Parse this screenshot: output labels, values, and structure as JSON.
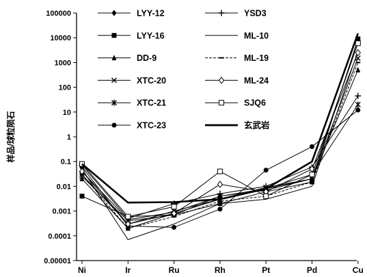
{
  "chart_data": {
    "type": "line",
    "title": "",
    "xlabel": "",
    "ylabel": "样品/球粒陨石",
    "y_scale": "log",
    "ylim": [
      1e-05,
      100000
    ],
    "y_tick_labels": [
      "0.00001",
      "0.0001",
      "0.001",
      "0.01",
      "0.1",
      "1",
      "10",
      "100",
      "1000",
      "10000",
      "100000"
    ],
    "categories": [
      "Ni",
      "Ir",
      "Ru",
      "Rh",
      "Pt",
      "Pd",
      "Cu"
    ],
    "grid": false,
    "legend_position": "top",
    "series": [
      {
        "name": "LYY-12",
        "marker": "diamond",
        "values": [
          0.04,
          0.00045,
          0.0009,
          0.004,
          0.007,
          0.02,
          8000
        ]
      },
      {
        "name": "LYY-16",
        "marker": "square",
        "values": [
          0.004,
          0.0006,
          0.0007,
          0.002,
          0.006,
          0.015,
          9000
        ]
      },
      {
        "name": "DD-9",
        "marker": "triangle",
        "values": [
          0.02,
          0.0002,
          0.0008,
          0.003,
          0.008,
          0.02,
          500
        ]
      },
      {
        "name": "XTC-20",
        "marker": "x",
        "values": [
          0.03,
          0.0003,
          0.001,
          0.003,
          0.009,
          0.02,
          1500
        ]
      },
      {
        "name": "XTC-21",
        "marker": "star",
        "values": [
          0.025,
          0.0004,
          0.0007,
          0.004,
          0.008,
          0.03,
          20
        ]
      },
      {
        "name": "XTC-23",
        "marker": "circle",
        "values": [
          0.06,
          0.00025,
          0.00022,
          0.0012,
          0.045,
          0.4,
          12
        ]
      },
      {
        "name": "YSD3",
        "marker": "plus",
        "values": [
          0.07,
          0.0005,
          0.002,
          0.005,
          0.01,
          0.06,
          45
        ]
      },
      {
        "name": "ML-10",
        "marker": "none",
        "values": [
          0.05,
          7e-05,
          0.0003,
          0.002,
          0.003,
          0.01,
          3000
        ]
      },
      {
        "name": "ML-19",
        "marker": "dash",
        "values": [
          0.03,
          0.0002,
          0.0006,
          0.0025,
          0.004,
          0.015,
          1000
        ]
      },
      {
        "name": "ML-24",
        "marker": "diamond-open",
        "values": [
          0.04,
          0.0003,
          0.0008,
          0.012,
          0.006,
          0.05,
          2500
        ]
      },
      {
        "name": "SJQ6",
        "marker": "square-open",
        "values": [
          0.08,
          0.0006,
          0.0015,
          0.04,
          0.004,
          0.03,
          6000
        ]
      },
      {
        "name": "玄武岩",
        "marker": "none",
        "bold": true,
        "values": [
          0.08,
          0.0022,
          0.0023,
          0.003,
          0.008,
          0.1,
          15000
        ]
      }
    ]
  }
}
